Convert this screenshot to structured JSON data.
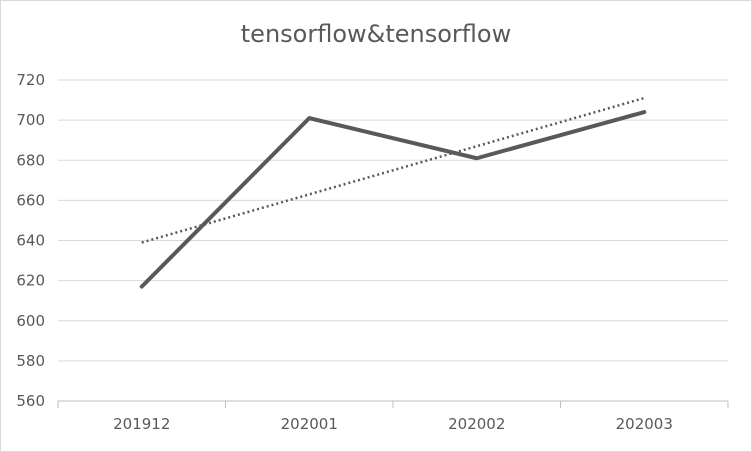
{
  "chart_data": {
    "type": "line",
    "title": "tensorflow&tensorflow",
    "xlabel": "",
    "ylabel": "",
    "categories": [
      "201912",
      "202001",
      "202002",
      "202003"
    ],
    "series": [
      {
        "values": [
          617,
          701,
          681,
          704
        ],
        "color": "#595959",
        "style": "solid"
      }
    ],
    "trendline": {
      "type": "linear",
      "values": [
        639,
        663,
        687,
        711
      ],
      "color": "#595959",
      "style": "dotted"
    },
    "ylim": [
      560,
      720
    ],
    "yticks": [
      560,
      580,
      600,
      620,
      640,
      660,
      680,
      700,
      720
    ],
    "grid": true,
    "legend": "none"
  }
}
